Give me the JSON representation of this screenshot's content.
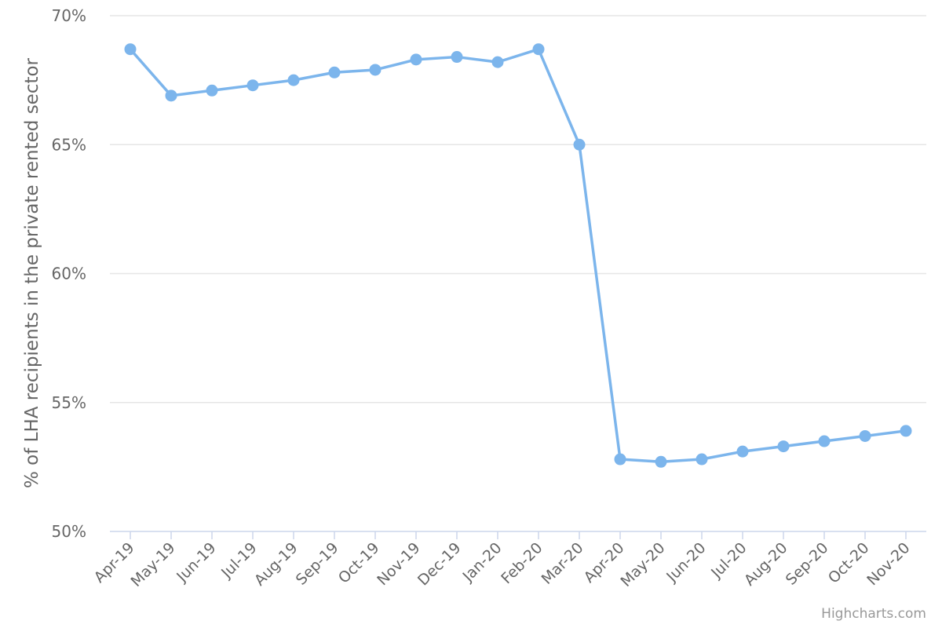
{
  "chart_data": {
    "type": "line",
    "title": "",
    "xlabel": "",
    "ylabel": "% of LHA recipients in the private rented sector",
    "categories": [
      "Apr-19",
      "May-19",
      "Jun-19",
      "Jul-19",
      "Aug-19",
      "Sep-19",
      "Oct-19",
      "Nov-19",
      "Dec-19",
      "Jan-20",
      "Feb-20",
      "Mar-20",
      "Apr-20",
      "May-20",
      "Jun-20",
      "Jul-20",
      "Aug-20",
      "Sep-20",
      "Oct-20",
      "Nov-20"
    ],
    "series": [
      {
        "values": [
          68.7,
          66.9,
          67.1,
          67.3,
          67.5,
          67.8,
          67.9,
          68.3,
          68.4,
          68.2,
          68.7,
          65.0,
          52.8,
          52.7,
          52.8,
          53.1,
          53.3,
          53.5,
          53.7,
          53.9
        ],
        "color": "#7cb5ec"
      }
    ],
    "ylim": [
      50,
      70
    ],
    "yticks": [
      50,
      55,
      60,
      65,
      70
    ],
    "ytick_suffix": "%",
    "grid": true,
    "legend": "none"
  },
  "credit": "Highcharts.com"
}
